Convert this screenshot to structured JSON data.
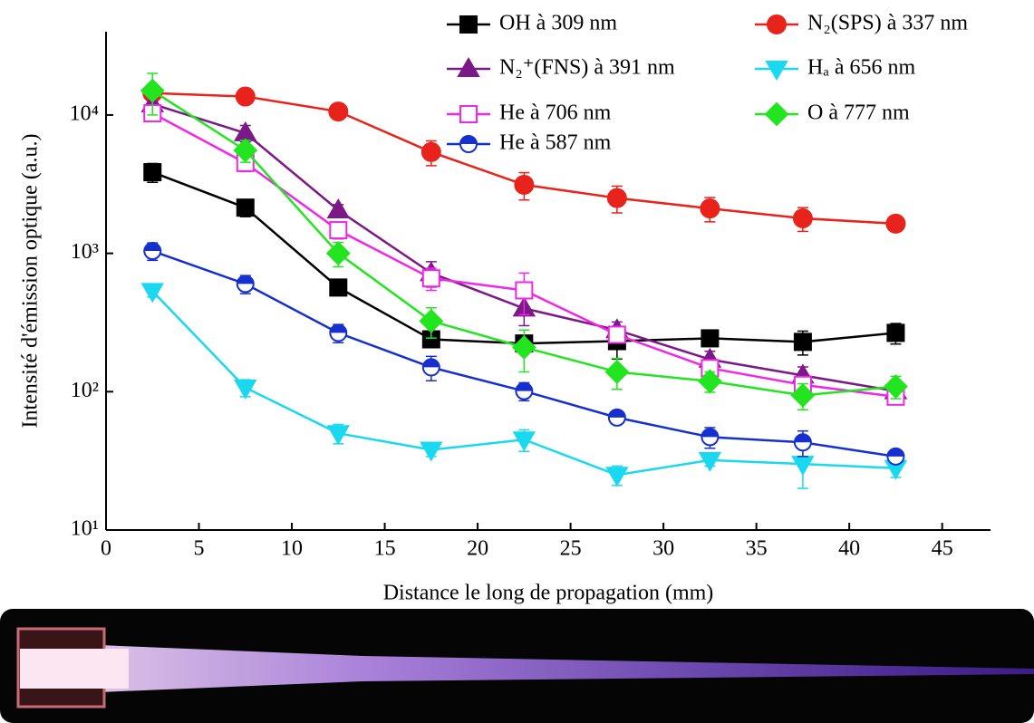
{
  "chart_data": {
    "type": "line",
    "x_label": "Distance le long de propagation (mm)",
    "y_label": "Intensité d'émission optique (a.u.)",
    "x": [
      2.5,
      7.5,
      12.5,
      17.5,
      22.5,
      27.5,
      32.5,
      37.5,
      42.5
    ],
    "xlim": [
      0,
      47.6
    ],
    "xticks": [
      0,
      5,
      10,
      15,
      20,
      25,
      30,
      35,
      40,
      45
    ],
    "ylim": [
      10,
      40000
    ],
    "log_y": true,
    "yticks": [
      {
        "value": 10,
        "label": "10¹"
      },
      {
        "value": 100,
        "label": "10²"
      },
      {
        "value": 1000,
        "label": "10³"
      },
      {
        "value": 10000,
        "label": "10⁴"
      }
    ],
    "series": [
      {
        "name": "OH à 309 nm",
        "color": "#000000",
        "marker": "square",
        "values": [
          3860,
          2140,
          566,
          239,
          223,
          232,
          243,
          229,
          266
        ],
        "errors": [
          600,
          300,
          60,
          25,
          25,
          60,
          20,
          45,
          45
        ]
      },
      {
        "name": "N₂(SPS) à 337 nm",
        "color": "#e8231c",
        "marker": "circle",
        "values": [
          14400,
          13600,
          10600,
          5400,
          3130,
          2510,
          2110,
          1790,
          1640
        ],
        "errors": [
          1500,
          1000,
          1300,
          1100,
          700,
          550,
          420,
          350,
          100
        ]
      },
      {
        "name": "N₂⁺(FNS) à 391 nm",
        "color": "#7b1a87",
        "marker": "triangle-up",
        "values": [
          12000,
          7400,
          2050,
          720,
          400,
          279,
          171,
          131,
          101
        ],
        "errors": [
          1500,
          1000,
          200,
          150,
          100,
          40,
          25,
          20,
          15
        ]
      },
      {
        "name": "Hₐ à 656 nm",
        "color": "#19d8f0",
        "marker": "triangle-down",
        "values": [
          533,
          107,
          50,
          38,
          45,
          25,
          32,
          30,
          28
        ],
        "errors": [
          50,
          15,
          8,
          4,
          8,
          4,
          3,
          10,
          4
        ]
      },
      {
        "name": "He à 706 nm",
        "color": "#f027e6",
        "marker": "open-square",
        "values": [
          10300,
          4500,
          1470,
          660,
          540,
          258,
          148,
          112,
          92
        ],
        "errors": [
          1200,
          600,
          200,
          120,
          180,
          30,
          20,
          15,
          8
        ]
      },
      {
        "name": "O à 777 nm",
        "color": "#22e51f",
        "marker": "diamond",
        "values": [
          15000,
          5550,
          1000,
          324,
          209,
          139,
          119,
          94,
          109
        ],
        "errors": [
          5000,
          1000,
          200,
          80,
          70,
          35,
          20,
          20,
          20
        ]
      },
      {
        "name": "He à 587 nm",
        "color": "#1630d0",
        "marker": "half-circle",
        "values": [
          1040,
          601,
          266,
          150,
          101,
          65,
          47,
          43,
          34
        ],
        "errors": [
          150,
          90,
          40,
          30,
          15,
          6,
          8,
          9,
          3
        ]
      }
    ]
  }
}
